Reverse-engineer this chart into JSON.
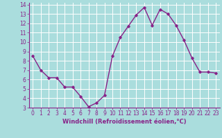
{
  "x": [
    0,
    1,
    2,
    3,
    4,
    5,
    6,
    7,
    8,
    9,
    10,
    11,
    12,
    13,
    14,
    15,
    16,
    17,
    18,
    19,
    20,
    21,
    22,
    23
  ],
  "y": [
    8.5,
    7.0,
    6.2,
    6.2,
    5.2,
    5.2,
    4.2,
    3.1,
    3.5,
    4.3,
    8.5,
    10.5,
    11.7,
    12.9,
    13.7,
    11.8,
    13.5,
    13.0,
    11.8,
    10.2,
    8.3,
    6.8,
    6.8,
    6.7
  ],
  "line_color": "#882288",
  "marker": "D",
  "marker_size": 1.8,
  "bg_color": "#aadddd",
  "grid_color": "#ffffff",
  "xlabel": "Windchill (Refroidissement éolien,°C)",
  "xlabel_color": "#882288",
  "tick_color": "#882288",
  "ylim": [
    3,
    14
  ],
  "xlim": [
    -0.5,
    23.5
  ],
  "yticks": [
    3,
    4,
    5,
    6,
    7,
    8,
    9,
    10,
    11,
    12,
    13,
    14
  ],
  "xticks": [
    0,
    1,
    2,
    3,
    4,
    5,
    6,
    7,
    8,
    9,
    10,
    11,
    12,
    13,
    14,
    15,
    16,
    17,
    18,
    19,
    20,
    21,
    22,
    23
  ],
  "linewidth": 1.0,
  "tick_fontsize": 5.5,
  "xlabel_fontsize": 6.0
}
